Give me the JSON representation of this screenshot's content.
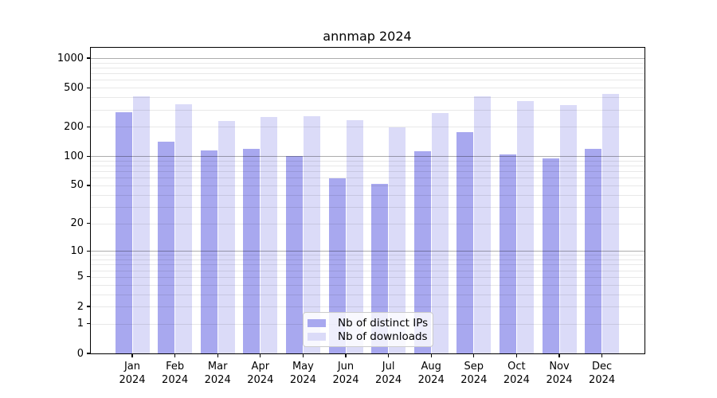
{
  "chart_data": {
    "type": "bar",
    "title": "annmap 2024",
    "categories": [
      "Jan",
      "Feb",
      "Mar",
      "Apr",
      "May",
      "Jun",
      "Jul",
      "Aug",
      "Sep",
      "Oct",
      "Nov",
      "Dec"
    ],
    "category_year": "2024",
    "series": [
      {
        "name": "Nb of distinct IPs",
        "color": "#a8a8ef",
        "values": [
          280,
          140,
          115,
          120,
          100,
          59,
          52,
          113,
          176,
          105,
          95,
          120
        ]
      },
      {
        "name": "Nb of downloads",
        "color": "#dbdbf8",
        "values": [
          410,
          340,
          230,
          250,
          255,
          235,
          197,
          276,
          410,
          365,
          330,
          430
        ]
      }
    ],
    "y_scale": "log10(1+v)",
    "y_ticks": [
      0,
      1,
      2,
      5,
      10,
      20,
      50,
      100,
      200,
      500,
      1000
    ],
    "y_major_gridlines": [
      10,
      100,
      1000
    ],
    "ylim": [
      0,
      1280
    ],
    "grid": "on",
    "legend_position": "lower center",
    "colors": {
      "grid_major": "rgba(0,0,0,0.32)",
      "grid_minor": "rgba(0,0,0,0.09)",
      "axis": "#000000",
      "background": "#ffffff"
    }
  }
}
